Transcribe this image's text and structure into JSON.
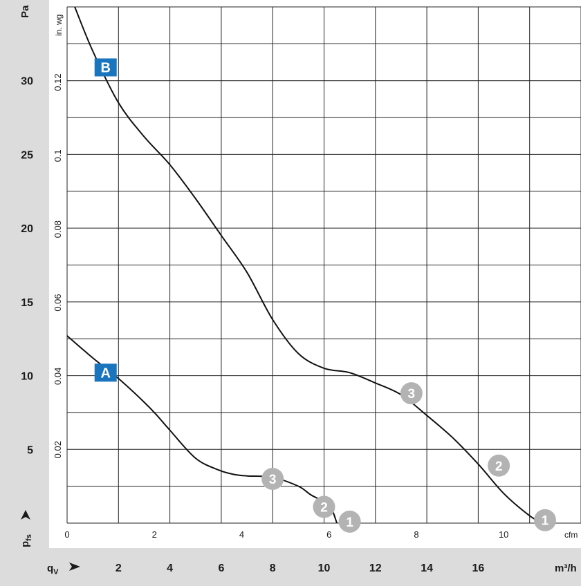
{
  "chart_data": {
    "type": "line",
    "xlabel": "q",
    "xlabel_sub": "V",
    "ylabel": "p",
    "ylabel_sub": "fs",
    "y_unit_primary": "Pa",
    "y_unit_secondary": "in. wg",
    "x_unit_primary": "m³/h",
    "x_unit_secondary": "cfm",
    "xlim": [
      0,
      20
    ],
    "ylim": [
      0,
      35
    ],
    "y_ticks_pa": [
      "5",
      "10",
      "15",
      "20",
      "25",
      "30"
    ],
    "y_ticks_inwg": [
      "0.02",
      "0.04",
      "0.06",
      "0.08",
      "0.1",
      "0.12"
    ],
    "x_ticks_m3h": [
      "2",
      "4",
      "6",
      "8",
      "10",
      "12",
      "14",
      "16"
    ],
    "x_ticks_cfm": [
      "0",
      "2",
      "4",
      "6",
      "8",
      "10"
    ],
    "grid": true,
    "series": [
      {
        "name": "A",
        "color": "#111111",
        "x": [
          0,
          1,
          2,
          3,
          3.5,
          4,
          5,
          5.9,
          6.5,
          7,
          8,
          9,
          9.5,
          10.2,
          10.5
        ],
        "y": [
          12.7,
          11.2,
          9.8,
          8.2,
          7.3,
          6.3,
          4.4,
          3.6,
          3.3,
          3.2,
          3.1,
          2.5,
          1.9,
          1.2,
          0
        ]
      },
      {
        "name": "B",
        "color": "#111111",
        "x": [
          0.3,
          1,
          2,
          3,
          4,
          5,
          6,
          7,
          8,
          9,
          10,
          11,
          12,
          13,
          14,
          15,
          16,
          17,
          18,
          18.5
        ],
        "y": [
          35,
          32,
          28.5,
          26.2,
          24.3,
          22,
          19.5,
          17,
          13.8,
          11.5,
          10.5,
          10.2,
          9.5,
          8.7,
          7.3,
          5.8,
          4,
          2,
          0.5,
          0
        ]
      }
    ],
    "series_labels": [
      {
        "text": "A",
        "x": 1.5,
        "y": 10.2
      },
      {
        "text": "B",
        "x": 1.5,
        "y": 30.9
      }
    ],
    "operating_points": [
      {
        "label": "3",
        "x": 8.0,
        "y": 3.0
      },
      {
        "label": "2",
        "x": 10.0,
        "y": 1.1
      },
      {
        "label": "1",
        "x": 11.0,
        "y": 0.1
      },
      {
        "label": "3",
        "x": 13.4,
        "y": 8.8
      },
      {
        "label": "2",
        "x": 16.8,
        "y": 3.9
      },
      {
        "label": "1",
        "x": 18.6,
        "y": 0.2
      }
    ],
    "colors": {
      "label_box": "#1a75bf",
      "marker": "#b3b3b3",
      "axis_panel": "#dcdcdc",
      "grid": "#222222"
    }
  }
}
